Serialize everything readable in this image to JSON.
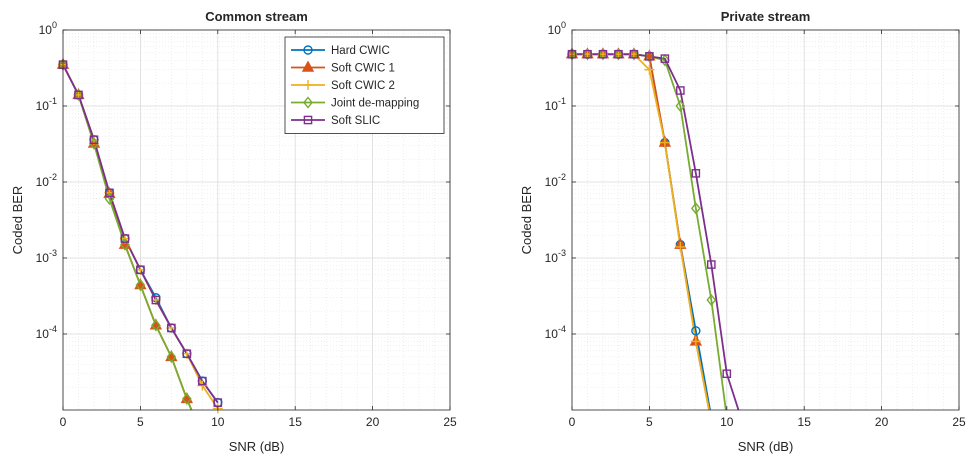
{
  "chart_data": [
    {
      "type": "line",
      "title": "Common stream",
      "xlabel": "SNR (dB)",
      "ylabel": "Coded BER",
      "xscale": "linear",
      "yscale": "log",
      "xlim": [
        0,
        25
      ],
      "ylim": [
        1e-05,
        1
      ],
      "xticks": [
        0,
        5,
        10,
        15,
        20,
        25
      ],
      "yticks": [
        0.0001,
        0.001,
        0.01,
        0.1,
        1
      ],
      "grid": true,
      "minor_grid": true,
      "legend": {
        "position": "top-right",
        "visible": true
      },
      "series": [
        {
          "name": "Hard CWIC",
          "color": "#0072BD",
          "marker": "circle",
          "x": [
            0,
            1,
            2,
            3,
            4,
            5,
            6,
            7,
            8,
            9,
            10
          ],
          "y": [
            0.35,
            0.14,
            0.036,
            0.0072,
            0.0018,
            0.0007,
            0.0003,
            0.00012,
            5.5e-05,
            2.4e-05,
            1.25e-05
          ]
        },
        {
          "name": "Soft CWIC 1",
          "color": "#D95319",
          "marker": "triangle",
          "x": [
            0,
            1,
            2,
            3,
            4,
            5,
            6,
            7,
            8,
            8.5
          ],
          "y": [
            0.35,
            0.14,
            0.032,
            0.007,
            0.0015,
            0.00044,
            0.00013,
            5e-05,
            1.4e-05,
            8e-06
          ]
        },
        {
          "name": "Soft CWIC 2",
          "color": "#EDB120",
          "marker": "plus",
          "x": [
            0,
            1,
            2,
            3,
            4,
            5,
            6,
            7,
            8,
            9,
            10
          ],
          "y": [
            0.35,
            0.14,
            0.036,
            0.0072,
            0.0018,
            0.0007,
            0.00028,
            0.00012,
            5.5e-05,
            2.1e-05,
            1.05e-05
          ]
        },
        {
          "name": "Joint de-mapping",
          "color": "#77AC30",
          "marker": "diamond",
          "x": [
            0,
            1,
            2,
            3,
            4,
            5,
            6,
            7,
            8,
            8.5
          ],
          "y": [
            0.35,
            0.14,
            0.032,
            0.006,
            0.0015,
            0.00044,
            0.00013,
            5e-05,
            1.4e-05,
            8e-06
          ]
        },
        {
          "name": "Soft SLIC",
          "color": "#7E2F8E",
          "marker": "square",
          "x": [
            0,
            1,
            2,
            3,
            4,
            5,
            6,
            7,
            8,
            9,
            10
          ],
          "y": [
            0.35,
            0.14,
            0.036,
            0.0072,
            0.0018,
            0.0007,
            0.00028,
            0.00012,
            5.5e-05,
            2.4e-05,
            1.25e-05
          ]
        }
      ]
    },
    {
      "type": "line",
      "title": "Private stream",
      "xlabel": "SNR (dB)",
      "ylabel": "Coded BER",
      "xscale": "linear",
      "yscale": "log",
      "xlim": [
        0,
        25
      ],
      "ylim": [
        1e-05,
        1
      ],
      "xticks": [
        0,
        5,
        10,
        15,
        20,
        25
      ],
      "yticks": [
        0.0001,
        0.001,
        0.01,
        0.1,
        1
      ],
      "grid": true,
      "minor_grid": true,
      "legend": {
        "visible": false
      },
      "series": [
        {
          "name": "Hard CWIC",
          "color": "#0072BD",
          "marker": "circle",
          "x": [
            0,
            1,
            2,
            3,
            4,
            5,
            6,
            7,
            8,
            9
          ],
          "y": [
            0.48,
            0.48,
            0.48,
            0.48,
            0.48,
            0.45,
            0.033,
            0.0015,
            0.00011,
            8e-06
          ]
        },
        {
          "name": "Soft CWIC 1",
          "color": "#D95319",
          "marker": "triangle",
          "x": [
            0,
            1,
            2,
            3,
            4,
            5,
            6,
            7,
            8,
            9
          ],
          "y": [
            0.48,
            0.48,
            0.48,
            0.48,
            0.48,
            0.45,
            0.033,
            0.0015,
            8e-05,
            7e-06
          ]
        },
        {
          "name": "Soft CWIC 2",
          "color": "#EDB120",
          "marker": "plus",
          "x": [
            0,
            1,
            2,
            3,
            4,
            5,
            6,
            7,
            8,
            9
          ],
          "y": [
            0.48,
            0.48,
            0.48,
            0.48,
            0.48,
            0.3,
            0.033,
            0.0014,
            8e-05,
            7e-06
          ]
        },
        {
          "name": "Joint de-mapping",
          "color": "#77AC30",
          "marker": "diamond",
          "x": [
            0,
            1,
            2,
            3,
            4,
            5,
            6,
            7,
            8,
            9,
            10
          ],
          "y": [
            0.48,
            0.48,
            0.48,
            0.48,
            0.48,
            0.45,
            0.4,
            0.1,
            0.0045,
            0.00028,
            8e-06
          ]
        },
        {
          "name": "Soft SLIC",
          "color": "#7E2F8E",
          "marker": "square",
          "x": [
            0,
            1,
            2,
            3,
            4,
            5,
            6,
            7,
            8,
            9,
            10,
            11
          ],
          "y": [
            0.48,
            0.48,
            0.48,
            0.48,
            0.48,
            0.45,
            0.42,
            0.16,
            0.013,
            0.00082,
            3e-05,
            7e-06
          ]
        }
      ]
    }
  ]
}
